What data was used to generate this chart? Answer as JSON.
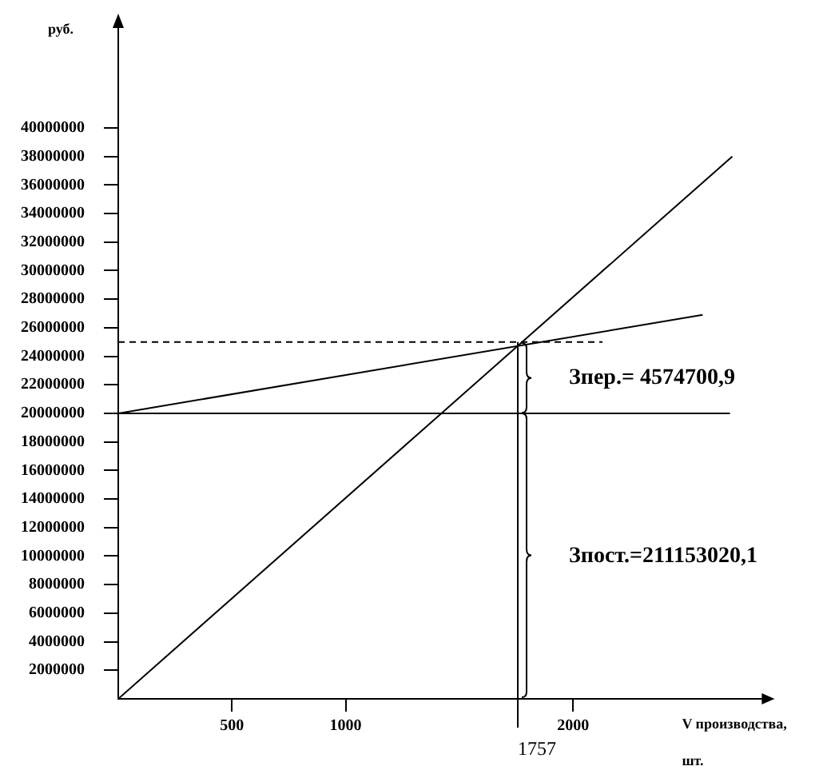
{
  "chart_data": {
    "type": "line",
    "ylabel": "руб.",
    "xlabel": "V производства, шт.",
    "xlim": [
      0,
      2830
    ],
    "ylim": [
      0,
      47000000
    ],
    "xticks": [
      500,
      1000,
      2000
    ],
    "yticks": [
      2000000,
      4000000,
      6000000,
      8000000,
      10000000,
      12000000,
      14000000,
      16000000,
      18000000,
      20000000,
      22000000,
      24000000,
      26000000,
      28000000,
      30000000,
      32000000,
      34000000,
      36000000,
      38000000,
      40000000
    ],
    "series": [
      {
        "color": "#000000",
        "x": [
          0,
          2690
        ],
        "values": [
          20000000,
          20000000
        ]
      },
      {
        "color": "#000000",
        "x": [
          0,
          2570
        ],
        "values": [
          20000000,
          26900000
        ]
      },
      {
        "color": "#000000",
        "x": [
          0,
          2700
        ],
        "values": [
          0,
          38000000
        ]
      }
    ],
    "ref_lines": [
      {
        "axis": "y",
        "value": 25000000,
        "color": "#000000",
        "line_style": "dashed"
      },
      {
        "axis": "x",
        "value": 1757,
        "label": "1757",
        "color": "#000000"
      }
    ],
    "annotations": [
      {
        "text": "Зпер.= 4574700,9",
        "x": 1757,
        "y": 22500000
      },
      {
        "text": "Зпост.=211153020,1",
        "x": 1757,
        "y": 10000000
      }
    ],
    "grid": false,
    "legend": false,
    "marker": "none",
    "line_style": "solid"
  }
}
